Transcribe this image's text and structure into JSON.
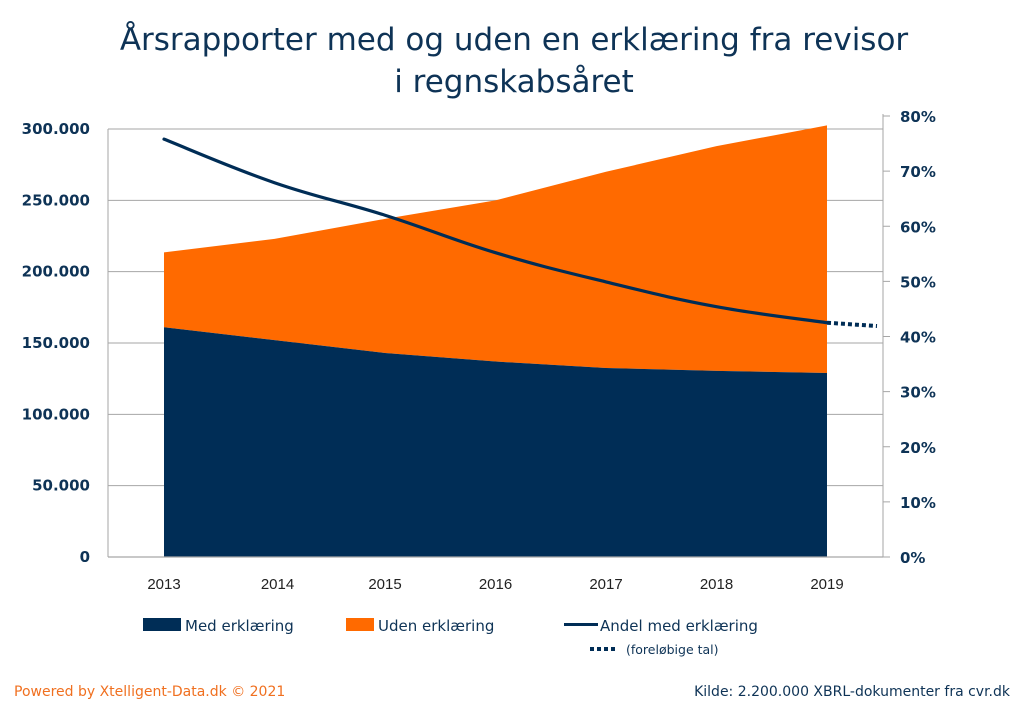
{
  "chart_data": {
    "type": "area",
    "title_lines": [
      "Årsrapporter med og uden en erklæring fra revisor",
      "i regnskabsåret"
    ],
    "categories": [
      "2013",
      "2014",
      "2015",
      "2016",
      "2017",
      "2018",
      "2019"
    ],
    "series": [
      {
        "name": "Med erklæring",
        "type": "stacked-area",
        "axis": "left",
        "color": "#002d56",
        "values": [
          161000,
          152000,
          143000,
          137000,
          132500,
          130500,
          129000
        ]
      },
      {
        "name": "Uden erklæring",
        "type": "stacked-area",
        "axis": "left",
        "color": "#ff6a00",
        "values": [
          52500,
          71000,
          94000,
          113000,
          137500,
          157500,
          173500
        ]
      },
      {
        "name": "Andel med erklæring",
        "type": "line",
        "axis": "right",
        "color": "#002d56",
        "values": [
          75.8,
          67.9,
          62.0,
          55.2,
          49.9,
          45.4,
          42.5
        ]
      }
    ],
    "preliminary": {
      "label": "(foreløbige tal)",
      "style": "dotted",
      "from_value": 42.5,
      "to_value": 41.9
    },
    "left_axis": {
      "ylim": [
        0,
        300000
      ],
      "ticks": [
        0,
        50000,
        100000,
        150000,
        200000,
        250000,
        300000
      ],
      "tick_labels": [
        "0",
        "50.000",
        "100.000",
        "150.000",
        "200.000",
        "250.000",
        "300.000"
      ]
    },
    "right_axis": {
      "ylim": [
        0,
        80
      ],
      "ticks": [
        0,
        10,
        20,
        30,
        40,
        50,
        60,
        70,
        80
      ],
      "tick_labels": [
        "0%",
        "10%",
        "20%",
        "30%",
        "40%",
        "50%",
        "60%",
        "70%",
        "80%"
      ]
    },
    "xlabel": "",
    "ylabel": "",
    "grid": true,
    "legend_position": "bottom"
  },
  "legend": {
    "items": [
      {
        "label": "Med erklæring",
        "swatch": "box",
        "color": "#002d56"
      },
      {
        "label": "Uden erklæring",
        "swatch": "box",
        "color": "#ff6a00"
      },
      {
        "label": "Andel med erklæring",
        "swatch": "line",
        "color": "#002d56"
      }
    ],
    "sub_label": "(foreløbige tal)"
  },
  "footer": {
    "powered_by": "Powered by Xtelligent-Data.dk © 2021",
    "source": "Kilde: 2.200.000 XBRL-dokumenter fra cvr.dk"
  }
}
